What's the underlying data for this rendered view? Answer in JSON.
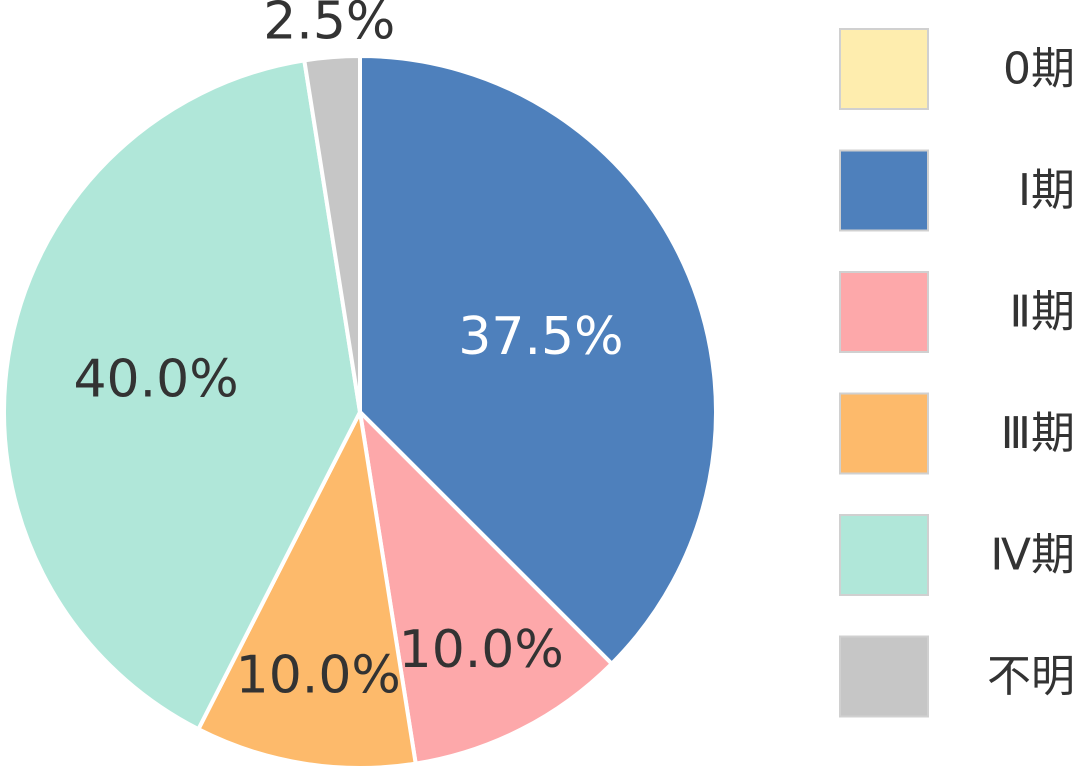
{
  "chart_data": {
    "type": "pie",
    "categories": [
      "0期",
      "Ⅰ期",
      "Ⅱ期",
      "Ⅲ期",
      "Ⅳ期",
      "不明"
    ],
    "values": [
      0.0,
      37.5,
      10.0,
      10.0,
      40.0,
      2.5
    ],
    "data_labels": [
      "",
      "37.5%",
      "10.0%",
      "10.0%",
      "40.0%",
      "2.5%"
    ],
    "colors": [
      "#FEEDAE",
      "#4E80BC",
      "#FDA8AA",
      "#FDBA6B",
      "#B0E7D9",
      "#C6C6C6"
    ],
    "label_colors": [
      "#333333",
      "#ffffff",
      "#333333",
      "#333333",
      "#333333",
      "#333333"
    ],
    "start_angle_deg": 0,
    "direction": "clockwise",
    "legend_position": "right"
  }
}
